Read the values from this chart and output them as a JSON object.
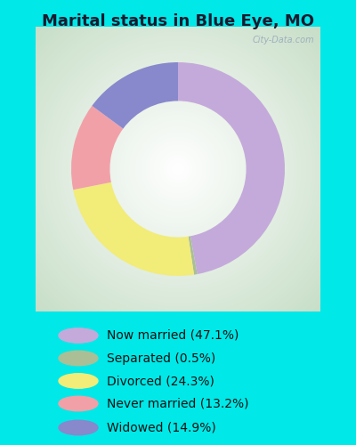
{
  "title": "Marital status in Blue Eye, MO",
  "categories": [
    "Now married",
    "Separated",
    "Divorced",
    "Never married",
    "Widowed"
  ],
  "values": [
    47.1,
    0.5,
    24.3,
    13.2,
    14.9
  ],
  "colors": [
    "#C4AADA",
    "#AABF96",
    "#F2EC78",
    "#F2A0A8",
    "#8888CC"
  ],
  "legend_labels": [
    "Now married (47.1%)",
    "Separated (0.5%)",
    "Divorced (24.3%)",
    "Never married (13.2%)",
    "Widowed (14.9%)"
  ],
  "bg_outer": "#00E8E8",
  "bg_chart_gradient_center": "#FFFFFF",
  "bg_chart_gradient_edge": "#C8DEC8",
  "title_fontsize": 13,
  "legend_fontsize": 10,
  "watermark": "City-Data.com"
}
